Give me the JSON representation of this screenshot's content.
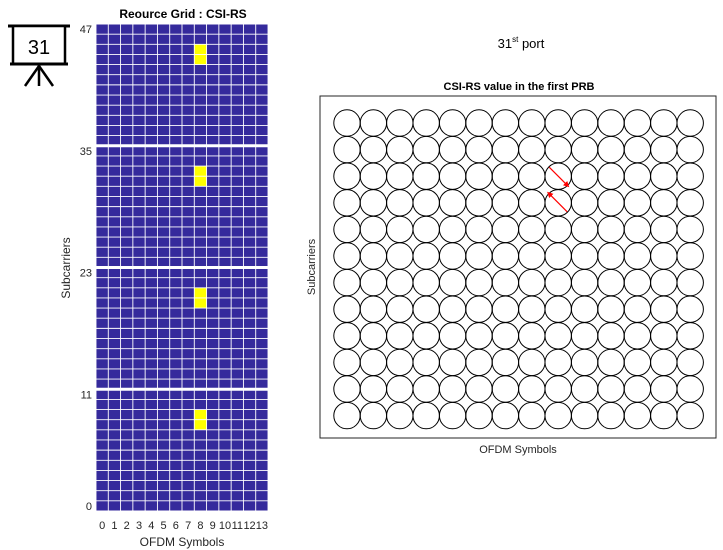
{
  "slide_badge": {
    "number": "31",
    "icon": "projector-screen-icon"
  },
  "port_label": {
    "base": "31",
    "superscript": "st",
    "suffix": " port"
  },
  "colors": {
    "grid_bg": "#352a9c",
    "grid_line": "#ffffff",
    "highlight": "#ffff00",
    "arrow": "#ff0000",
    "circle_stroke": "#000000"
  },
  "chart_data": [
    {
      "type": "heatmap",
      "title": "Reource Grid : CSI-RS",
      "xlabel": "OFDM Symbols",
      "ylabel": "Subcarriers",
      "x_ticks": [
        "0",
        "1",
        "2",
        "3",
        "4",
        "5",
        "6",
        "7",
        "8",
        "9",
        "10",
        "11",
        "12",
        "13"
      ],
      "y_ticks": [
        "0",
        "11",
        "23",
        "35",
        "47"
      ],
      "x_range": [
        0,
        13
      ],
      "y_range": [
        0,
        47
      ],
      "prb_boundaries": [
        11.5,
        23.5,
        35.5
      ],
      "highlighted_cells": [
        {
          "symbol": 8,
          "subcarrier": 8
        },
        {
          "symbol": 8,
          "subcarrier": 9
        },
        {
          "symbol": 8,
          "subcarrier": 20
        },
        {
          "symbol": 8,
          "subcarrier": 21
        },
        {
          "symbol": 8,
          "subcarrier": 32
        },
        {
          "symbol": 8,
          "subcarrier": 33
        },
        {
          "symbol": 8,
          "subcarrier": 44
        },
        {
          "symbol": 8,
          "subcarrier": 45
        }
      ]
    },
    {
      "type": "scatter",
      "title": "CSI-RS value in the first PRB",
      "xlabel": "OFDM Symbols",
      "ylabel": "Subcarriers",
      "columns": 14,
      "rows": 12,
      "vectors": [
        {
          "symbol": 8,
          "subcarrier": 9,
          "direction": "down-right"
        },
        {
          "symbol": 8,
          "subcarrier": 8,
          "direction": "up-left"
        }
      ]
    }
  ]
}
